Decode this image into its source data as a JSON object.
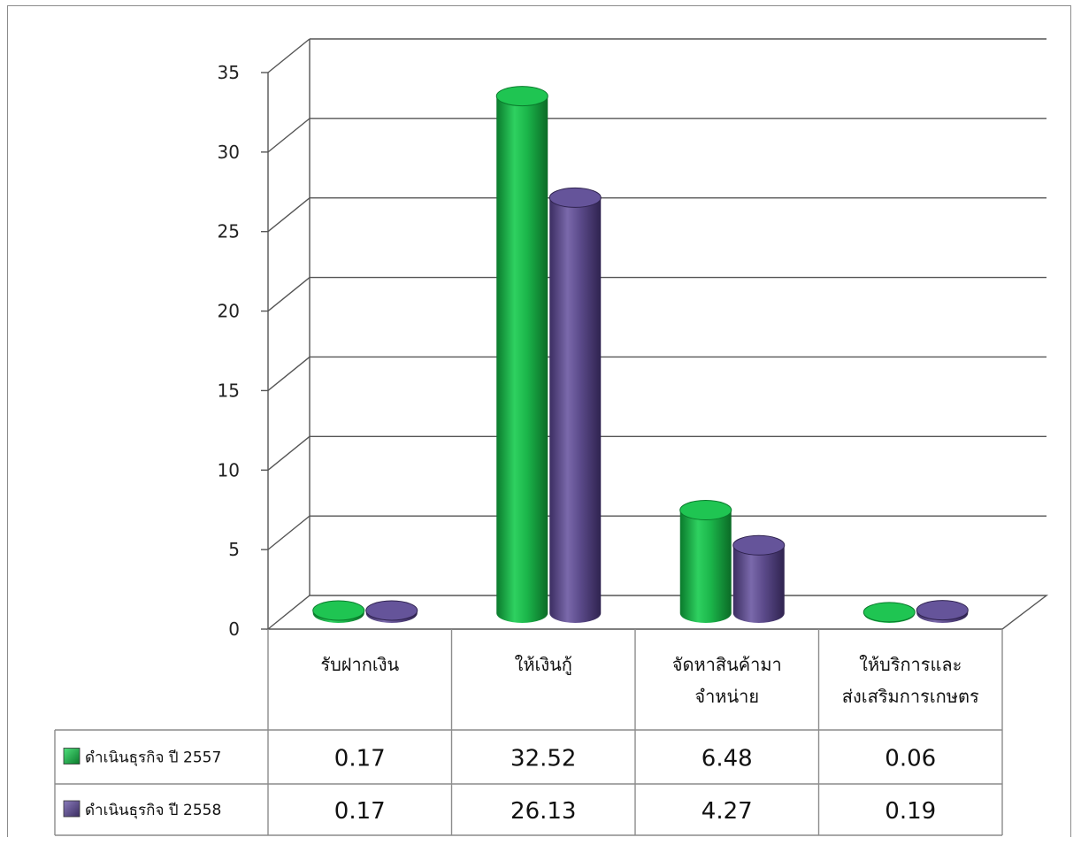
{
  "chart_data": {
    "type": "bar",
    "style": "3d-cylinder",
    "categories": [
      [
        "รับฝากเงิน"
      ],
      [
        "ให้เงินกู้"
      ],
      [
        "จัดหาสินค้ามา",
        "จำหน่าย"
      ],
      [
        "ให้บริการและ",
        "ส่งเสริมการเกษตร"
      ]
    ],
    "series": [
      {
        "name": "ดำเนินธุรกิจ ปี 2557",
        "color": "#1bb54a",
        "values": [
          0.17,
          32.52,
          6.48,
          0.06
        ],
        "labels": [
          "0.17",
          "32.52",
          "6.48",
          "0.06"
        ]
      },
      {
        "name": "ดำเนินธุรกิจ ปี 2558",
        "color": "#5b4a8a",
        "values": [
          0.17,
          26.13,
          4.27,
          0.19
        ],
        "labels": [
          "0.17",
          "26.13",
          "4.27",
          "0.19"
        ]
      }
    ],
    "ylim": [
      0,
      35
    ],
    "yticks": [
      "0",
      "5",
      "10",
      "15",
      "20",
      "25",
      "30",
      "35"
    ],
    "grid": true,
    "legend": "data-table"
  }
}
